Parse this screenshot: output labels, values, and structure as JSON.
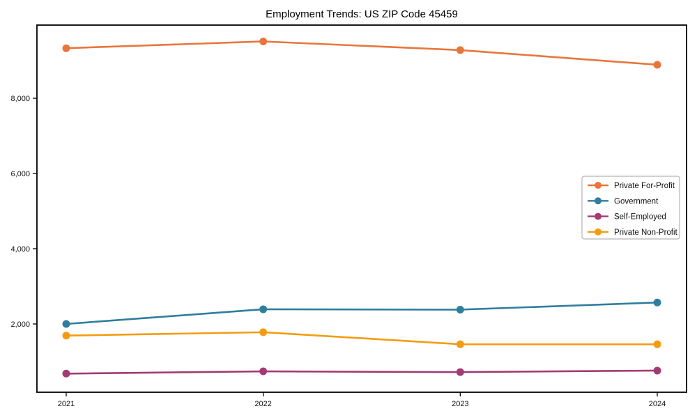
{
  "title": "Employment Trends: US ZIP Code 45459",
  "chart_data": {
    "type": "line",
    "title": "Employment Trends: US ZIP Code 45459",
    "xlabel": "",
    "ylabel": "",
    "x": [
      2021,
      2022,
      2023,
      2024
    ],
    "xtick_labels": [
      "2021",
      "2022",
      "2023",
      "2024"
    ],
    "yticks": [
      2000,
      4000,
      6000,
      8000
    ],
    "ytick_labels": [
      "2,000",
      "4,000",
      "6,000",
      "8,000"
    ],
    "ylim": [
      185,
      9945
    ],
    "grid": false,
    "marker": "circle",
    "legend_position": "right-middle",
    "series": [
      {
        "name": "Private For-Profit",
        "color": "#e8763c",
        "values": [
          9330,
          9510,
          9280,
          8890
        ]
      },
      {
        "name": "Government",
        "color": "#2f7e9e",
        "values": [
          2000,
          2390,
          2380,
          2570
        ]
      },
      {
        "name": "Self-Employed",
        "color": "#a23b72",
        "values": [
          680,
          740,
          720,
          760
        ]
      },
      {
        "name": "Private Non-Profit",
        "color": "#f39c12",
        "values": [
          1690,
          1780,
          1460,
          1460
        ]
      }
    ]
  }
}
